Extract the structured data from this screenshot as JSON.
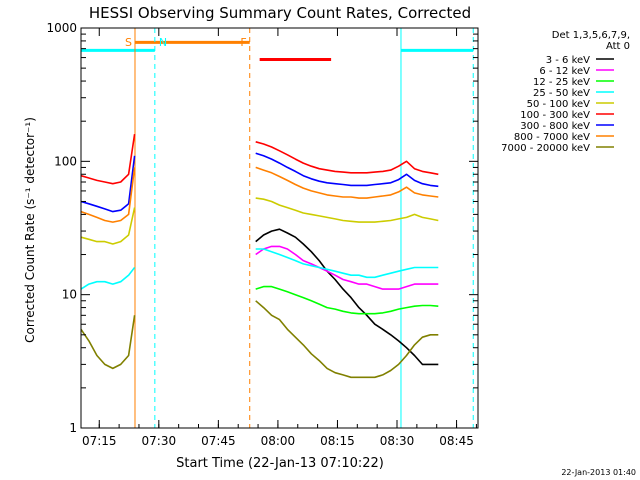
{
  "chart_data": {
    "type": "line",
    "title": "HESSI Observing Summary Count Rates, Corrected",
    "xlabel": "Start Time (22-Jan-13 07:10:22)",
    "ylabel": "Corrected Count Rate (s⁻¹ detector⁻¹)",
    "x_unit": "minutes after 07:10:22",
    "xlim": [
      0,
      100
    ],
    "ylim": [
      1,
      1000
    ],
    "yscale": "log",
    "x_ticks": [
      {
        "t": 4.6,
        "label": "07:15"
      },
      {
        "t": 19.6,
        "label": "07:30"
      },
      {
        "t": 34.6,
        "label": "07:45"
      },
      {
        "t": 49.6,
        "label": "08:00"
      },
      {
        "t": 64.6,
        "label": "08:15"
      },
      {
        "t": 79.6,
        "label": "08:30"
      },
      {
        "t": 94.6,
        "label": "08:45"
      }
    ],
    "y_ticks": [
      {
        "v": 1,
        "label": "1"
      },
      {
        "v": 10,
        "label": "10"
      },
      {
        "v": 100,
        "label": "100"
      },
      {
        "v": 1000,
        "label": "1000"
      }
    ],
    "legend_header": [
      "Det 1,3,5,6,7,9,",
      "Att 0"
    ],
    "legend_position": "right",
    "series": [
      {
        "name": "3 - 6 keV",
        "color": "#000000",
        "segments": [
          {
            "x": [
              44,
              46,
              48,
              50,
              52,
              54,
              56,
              58,
              60,
              62,
              64,
              66,
              68,
              70,
              72,
              74,
              76,
              78,
              80,
              82,
              84,
              86,
              88,
              90
            ],
            "y": [
              25,
              28,
              30,
              31,
              29,
              27,
              24,
              21,
              18,
              15,
              13,
              11,
              9.5,
              8,
              7,
              6,
              5.5,
              5,
              4.5,
              4,
              3.5,
              3,
              3,
              3
            ]
          }
        ]
      },
      {
        "name": "6 - 12 keV",
        "color": "#ff00ff",
        "segments": [
          {
            "x": [
              44,
              46,
              48,
              50,
              52,
              54,
              56,
              58,
              60,
              62,
              64,
              66,
              68,
              70,
              72,
              74,
              76,
              78,
              80,
              82,
              84,
              86,
              88,
              90
            ],
            "y": [
              20,
              22,
              23,
              23,
              22,
              20,
              18,
              17,
              16,
              15,
              14,
              13,
              12.5,
              12,
              12,
              11.5,
              11,
              11,
              11,
              11.5,
              12,
              12,
              12,
              12
            ]
          }
        ]
      },
      {
        "name": "12 - 25 keV",
        "color": "#00ff00",
        "segments": [
          {
            "x": [
              44,
              46,
              48,
              50,
              52,
              54,
              56,
              58,
              60,
              62,
              64,
              66,
              68,
              70,
              72,
              74,
              76,
              78,
              80,
              82,
              84,
              86,
              88,
              90
            ],
            "y": [
              11,
              11.5,
              11.5,
              11,
              10.5,
              10,
              9.5,
              9,
              8.5,
              8,
              7.8,
              7.5,
              7.3,
              7.2,
              7.2,
              7.2,
              7.3,
              7.5,
              7.8,
              8,
              8.2,
              8.3,
              8.3,
              8.2
            ]
          }
        ]
      },
      {
        "name": "25 - 50 keV",
        "color": "#00ffff",
        "segments": [
          {
            "x": [
              0,
              2,
              4,
              6,
              8,
              10,
              12,
              13.5
            ],
            "y": [
              11,
              12,
              12.5,
              12.5,
              12,
              12.5,
              14,
              16
            ]
          },
          {
            "x": [
              44,
              46,
              48,
              50,
              52,
              54,
              56,
              58,
              60,
              62,
              64,
              66,
              68,
              70,
              72,
              74,
              76,
              78,
              80,
              82,
              84,
              86,
              88,
              90
            ],
            "y": [
              22,
              22,
              21,
              20,
              19,
              18,
              17,
              16.5,
              16,
              15.5,
              15,
              14.5,
              14,
              14,
              13.5,
              13.5,
              14,
              14.5,
              15,
              15.5,
              16,
              16,
              16,
              16
            ]
          }
        ]
      },
      {
        "name": "50 - 100 keV",
        "color": "#cccc00",
        "segments": [
          {
            "x": [
              0,
              2,
              4,
              6,
              8,
              10,
              12,
              13.5
            ],
            "y": [
              27,
              26,
              25,
              25,
              24,
              25,
              28,
              45
            ]
          },
          {
            "x": [
              44,
              46,
              48,
              50,
              52,
              54,
              56,
              58,
              60,
              62,
              64,
              66,
              68,
              70,
              72,
              74,
              76,
              78,
              80,
              82,
              84,
              86,
              88,
              90
            ],
            "y": [
              53,
              52,
              50,
              47,
              45,
              43,
              41,
              40,
              39,
              38,
              37,
              36,
              35.5,
              35,
              35,
              35,
              35.5,
              36,
              37,
              38,
              40,
              38,
              37,
              36
            ]
          }
        ]
      },
      {
        "name": "100 - 300 keV",
        "color": "#ff0000",
        "segments": [
          {
            "x": [
              0,
              2,
              4,
              6,
              8,
              10,
              12,
              13.5
            ],
            "y": [
              78,
              75,
              72,
              70,
              68,
              70,
              80,
              160
            ]
          },
          {
            "x": [
              44,
              46,
              48,
              50,
              52,
              54,
              56,
              58,
              60,
              62,
              64,
              66,
              68,
              70,
              72,
              74,
              76,
              78,
              80,
              82,
              84,
              86,
              88,
              90
            ],
            "y": [
              140,
              135,
              128,
              120,
              112,
              104,
              97,
              92,
              88,
              86,
              84,
              83,
              82,
              82,
              82,
              83,
              84,
              86,
              92,
              100,
              88,
              84,
              82,
              80
            ]
          }
        ]
      },
      {
        "name": "300 - 800 keV",
        "color": "#0000ff",
        "segments": [
          {
            "x": [
              0,
              2,
              4,
              6,
              8,
              10,
              12,
              13.5
            ],
            "y": [
              50,
              48,
              46,
              44,
              42,
              43,
              48,
              110
            ]
          },
          {
            "x": [
              44,
              46,
              48,
              50,
              52,
              54,
              56,
              58,
              60,
              62,
              64,
              66,
              68,
              70,
              72,
              74,
              76,
              78,
              80,
              82,
              84,
              86,
              88,
              90
            ],
            "y": [
              115,
              110,
              104,
              97,
              90,
              84,
              78,
              74,
              71,
              69,
              68,
              67,
              66,
              66,
              66,
              67,
              68,
              69,
              73,
              80,
              72,
              68,
              66,
              65
            ]
          }
        ]
      },
      {
        "name": "800 - 7000 keV",
        "color": "#ff8000",
        "segments": [
          {
            "x": [
              0,
              2,
              4,
              6,
              8,
              10,
              12,
              13.5
            ],
            "y": [
              42,
              40,
              38,
              36,
              35,
              36,
              40,
              90
            ]
          },
          {
            "x": [
              44,
              46,
              48,
              50,
              52,
              54,
              56,
              58,
              60,
              62,
              64,
              66,
              68,
              70,
              72,
              74,
              76,
              78,
              80,
              82,
              84,
              86,
              88,
              90
            ],
            "y": [
              90,
              86,
              82,
              77,
              72,
              67,
              63,
              60,
              58,
              56,
              55,
              54,
              54,
              53,
              53,
              54,
              55,
              56,
              59,
              64,
              58,
              56,
              55,
              54
            ]
          }
        ]
      },
      {
        "name": "7000 - 20000 keV",
        "color": "#808000",
        "segments": [
          {
            "x": [
              0,
              2,
              4,
              6,
              8,
              10,
              12,
              13.5
            ],
            "y": [
              5.5,
              4.5,
              3.5,
              3,
              2.8,
              3,
              3.5,
              7
            ]
          },
          {
            "x": [
              44,
              46,
              48,
              50,
              52,
              54,
              56,
              58,
              60,
              62,
              64,
              66,
              68,
              70,
              72,
              74,
              76,
              78,
              80,
              82,
              84,
              86,
              88,
              90
            ],
            "y": [
              9,
              8,
              7,
              6.5,
              5.5,
              4.8,
              4.2,
              3.6,
              3.2,
              2.8,
              2.6,
              2.5,
              2.4,
              2.4,
              2.4,
              2.4,
              2.5,
              2.7,
              3,
              3.5,
              4.2,
              4.8,
              5,
              5
            ]
          }
        ]
      }
    ],
    "annotations": {
      "markers": [
        {
          "label": "S",
          "t": 13.6,
          "color": "#ff8000",
          "style": "solid"
        },
        {
          "label": "N",
          "t": 18.6,
          "color": "#00ffff",
          "style": "dashed"
        },
        {
          "label": "F",
          "t": 42.5,
          "color": "#ff8000",
          "style": "dashed"
        }
      ],
      "extra_markers": [
        {
          "t": 80.6,
          "color": "#00ffff",
          "style": "solid"
        },
        {
          "t": 98.8,
          "color": "#00ffff",
          "style": "dashed"
        }
      ],
      "bars": [
        {
          "t0": 13.6,
          "t1": 42.5,
          "y": 780,
          "color": "#ff8000"
        },
        {
          "t0": 45.0,
          "t1": 63.0,
          "y": 580,
          "color": "#ff0000"
        },
        {
          "t0": 0.0,
          "t1": 18.6,
          "y": 680,
          "color": "#00ffff"
        },
        {
          "t0": 80.6,
          "t1": 98.8,
          "y": 680,
          "color": "#00ffff"
        }
      ]
    }
  },
  "footer_stamp": "22-Jan-2013 01:40"
}
